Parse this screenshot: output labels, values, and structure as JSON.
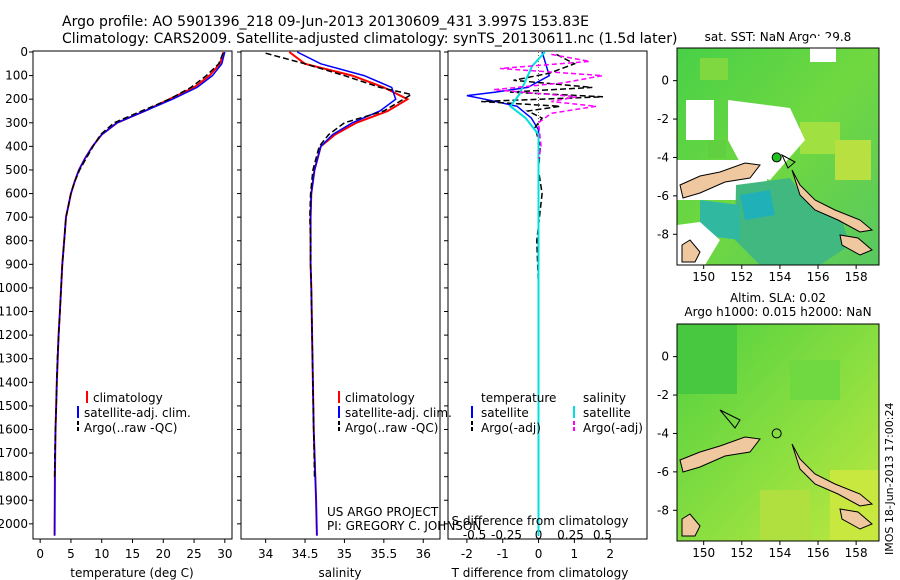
{
  "header": {
    "line1": "Argo profile: AO 5901396_218 09-Jun-2013 20130609_431 3.997S 153.83E",
    "line2": "Climatology: CARS2009. Satellite-adjusted climatology: synTS_20130611.nc (1.5d later)"
  },
  "credit": {
    "project": "US ARGO PROJECT",
    "pi": "PI: GREGORY C. JOHNSON"
  },
  "side_label": "IMOS 18-Jun-2013 17:00:24",
  "colors": {
    "climatology": "#ff0000",
    "satellite": "#0000ff",
    "argo": "#000000",
    "sat_salinity": "#00e0e0",
    "argo_salinity": "#ff00ff",
    "land": "#f0c8a0",
    "ocean_a": "#40d040",
    "ocean_b": "#a0e040"
  },
  "chart_data": [
    {
      "id": "temperature",
      "type": "line",
      "xlabel": "temperature (deg C)",
      "ylabel": "",
      "xlim": [
        -1,
        31
      ],
      "ylim": [
        2060,
        0
      ],
      "xticks": [
        0,
        5,
        10,
        15,
        20,
        25,
        30
      ],
      "yticks": [
        0,
        100,
        200,
        300,
        400,
        500,
        600,
        700,
        800,
        900,
        1000,
        1100,
        1200,
        1300,
        1400,
        1500,
        1600,
        1700,
        1800,
        1900,
        2000
      ],
      "legend": [
        "climatology",
        "satellite-adj. clim.",
        "Argo(..raw -QC)"
      ],
      "series": [
        {
          "name": "climatology",
          "x": [
            29.8,
            29.2,
            27.5,
            25.0,
            21.0,
            17.0,
            12.5,
            10.0,
            8.5,
            7.3,
            6.3,
            5.6,
            5.0,
            4.6,
            4.2,
            3.9,
            3.6,
            3.4,
            3.2,
            3.0,
            2.85,
            2.7,
            2.6,
            2.5,
            2.45,
            2.4,
            2.35
          ],
          "y": [
            0,
            50,
            100,
            150,
            200,
            250,
            300,
            350,
            400,
            450,
            500,
            550,
            600,
            650,
            700,
            800,
            900,
            1000,
            1100,
            1200,
            1300,
            1400,
            1500,
            1600,
            1700,
            1800,
            2050
          ]
        },
        {
          "name": "satellite-adj. clim.",
          "x": [
            30.0,
            29.5,
            28.0,
            25.5,
            21.5,
            17.0,
            12.5,
            10.0,
            8.5,
            7.3,
            6.3,
            5.6,
            5.0,
            4.6,
            4.2,
            3.9,
            3.6,
            3.4,
            3.2,
            3.0,
            2.85,
            2.7,
            2.6,
            2.5,
            2.45,
            2.4,
            2.35
          ],
          "y": [
            0,
            50,
            100,
            150,
            200,
            250,
            300,
            350,
            400,
            450,
            500,
            550,
            600,
            650,
            700,
            800,
            900,
            1000,
            1100,
            1200,
            1300,
            1400,
            1500,
            1600,
            1700,
            1800,
            2050
          ]
        },
        {
          "name": "Argo(..raw -QC)",
          "x": [
            29.7,
            29.0,
            27.0,
            24.5,
            21.0,
            16.5,
            12.0,
            9.8,
            8.6,
            7.5,
            6.4,
            5.6,
            5.0,
            4.6,
            4.2,
            3.9,
            3.6,
            3.4,
            3.2,
            3.0,
            2.8,
            2.7,
            2.6,
            2.5,
            2.4,
            2.35
          ],
          "y": [
            5,
            50,
            100,
            150,
            200,
            250,
            300,
            350,
            400,
            450,
            500,
            550,
            600,
            650,
            700,
            800,
            900,
            1000,
            1100,
            1200,
            1300,
            1400,
            1500,
            1600,
            1700,
            1800
          ]
        }
      ]
    },
    {
      "id": "salinity",
      "type": "line",
      "xlabel": "salinity",
      "xlim": [
        33.7,
        36.2
      ],
      "ylim": [
        2060,
        0
      ],
      "xticks": [
        34,
        34.5,
        35,
        35.5,
        36
      ],
      "xtick_labels": [
        "34",
        "34.5",
        "35",
        "35.5",
        "36"
      ],
      "legend": [
        "climatology",
        "satellite-adj. clim.",
        "Argo(..raw -QC)"
      ],
      "series": [
        {
          "name": "climatology",
          "x": [
            34.3,
            34.5,
            35.1,
            35.5,
            35.8,
            35.55,
            35.15,
            34.88,
            34.7,
            34.62,
            34.58,
            34.57,
            34.57,
            34.57,
            34.58,
            34.59,
            34.6,
            34.61,
            34.62,
            34.63,
            34.64,
            34.65
          ],
          "y": [
            0,
            50,
            100,
            150,
            200,
            250,
            300,
            350,
            400,
            500,
            600,
            700,
            800,
            900,
            1000,
            1200,
            1400,
            1600,
            1700,
            1800,
            1900,
            2050
          ]
        },
        {
          "name": "satellite-adj. clim.",
          "x": [
            34.4,
            34.7,
            35.25,
            35.6,
            35.65,
            35.45,
            35.1,
            34.85,
            34.7,
            34.62,
            34.58,
            34.57,
            34.57,
            34.57,
            34.58,
            34.59,
            34.6,
            34.61,
            34.62,
            34.63,
            34.64,
            34.65
          ],
          "y": [
            0,
            50,
            100,
            150,
            200,
            250,
            300,
            350,
            400,
            500,
            600,
            700,
            800,
            900,
            1000,
            1200,
            1400,
            1600,
            1700,
            1800,
            1900,
            2050
          ]
        },
        {
          "name": "Argo(..raw -QC)",
          "x": [
            34.0,
            34.5,
            35.0,
            35.45,
            35.85,
            35.5,
            35.0,
            34.8,
            34.68,
            34.6,
            34.57,
            34.56,
            34.57,
            34.57,
            34.58,
            34.59,
            34.6,
            34.61,
            34.62
          ],
          "y": [
            5,
            50,
            100,
            150,
            180,
            250,
            300,
            350,
            400,
            500,
            600,
            700,
            800,
            900,
            1000,
            1200,
            1400,
            1600,
            1800
          ]
        }
      ]
    },
    {
      "id": "difference",
      "type": "line",
      "xlabel": "T difference from climatology",
      "xlabel_top": "S difference from climatology",
      "xlim": [
        -2.5,
        3
      ],
      "ylim": [
        2060,
        0
      ],
      "xticks": [
        -2,
        -1,
        0,
        1,
        2
      ],
      "sticks": [
        -0.5,
        -0.25,
        0,
        0.25,
        0.5
      ],
      "stick_labels": [
        "-0.5",
        "-0.25",
        "0",
        "0.25",
        "0.5"
      ],
      "legend_t_title": "temperature",
      "legend_s_title": "salinity",
      "legend": [
        "satellite",
        "Argo(-adj)",
        "satellite",
        "Argo(-adj)"
      ],
      "series": [
        {
          "name": "T satellite",
          "x": [
            0.1,
            0.2,
            0.3,
            -0.3,
            -1.2,
            -2.0,
            -1.5,
            -0.6,
            -0.2,
            0,
            0,
            0,
            0,
            0,
            0
          ],
          "y": [
            0,
            50,
            100,
            150,
            170,
            185,
            200,
            230,
            280,
            330,
            400,
            600,
            1000,
            1500,
            2050
          ]
        },
        {
          "name": "T Argo(-adj)",
          "x": [
            0.5,
            1.0,
            0.3,
            -0.7,
            1.5,
            -0.8,
            1.8,
            -1.6,
            0.6,
            -0.3,
            0.1,
            -0.1,
            0.05,
            0,
            0.1,
            -0.05,
            0,
            0
          ],
          "y": [
            10,
            50,
            90,
            120,
            150,
            170,
            190,
            210,
            230,
            250,
            280,
            320,
            400,
            500,
            600,
            800,
            1000,
            1800
          ]
        },
        {
          "name": "S satellite",
          "x": [
            0.05,
            -0.05,
            -0.1,
            -0.15,
            -0.22,
            -0.1,
            0,
            0,
            0
          ],
          "y": [
            0,
            60,
            120,
            180,
            230,
            280,
            350,
            600,
            2050
          ]
        },
        {
          "name": "S Argo(-adj)",
          "x": [
            0.1,
            0.4,
            -0.3,
            0.5,
            0.2,
            -0.35,
            0.3,
            0.1,
            0.45,
            0.1,
            0,
            0.02,
            0
          ],
          "y": [
            10,
            40,
            70,
            100,
            130,
            160,
            190,
            210,
            230,
            260,
            300,
            400,
            450
          ]
        }
      ]
    },
    {
      "id": "sst_map",
      "type": "heatmap",
      "title": "sat. SST: NaN Argo: 29.8",
      "xlim": [
        148.6,
        159.2
      ],
      "ylim": [
        -9.6,
        1.7
      ],
      "xticks": [
        150,
        152,
        154,
        156,
        158
      ],
      "yticks": [
        -8,
        -6,
        -4,
        -2,
        0
      ],
      "argo_position": {
        "lon": 153.83,
        "lat": -3.997
      }
    },
    {
      "id": "sla_map",
      "type": "heatmap",
      "title_line1": "Altim. SLA: 0.02",
      "title_line2": "Argo h1000: 0.015 h2000: NaN",
      "xlim": [
        148.6,
        159.2
      ],
      "ylim": [
        -9.6,
        1.7
      ],
      "xticks": [
        150,
        152,
        154,
        156,
        158
      ],
      "yticks": [
        -8,
        -6,
        -4,
        -2,
        0
      ],
      "argo_position": {
        "lon": 153.83,
        "lat": -3.997
      }
    }
  ]
}
